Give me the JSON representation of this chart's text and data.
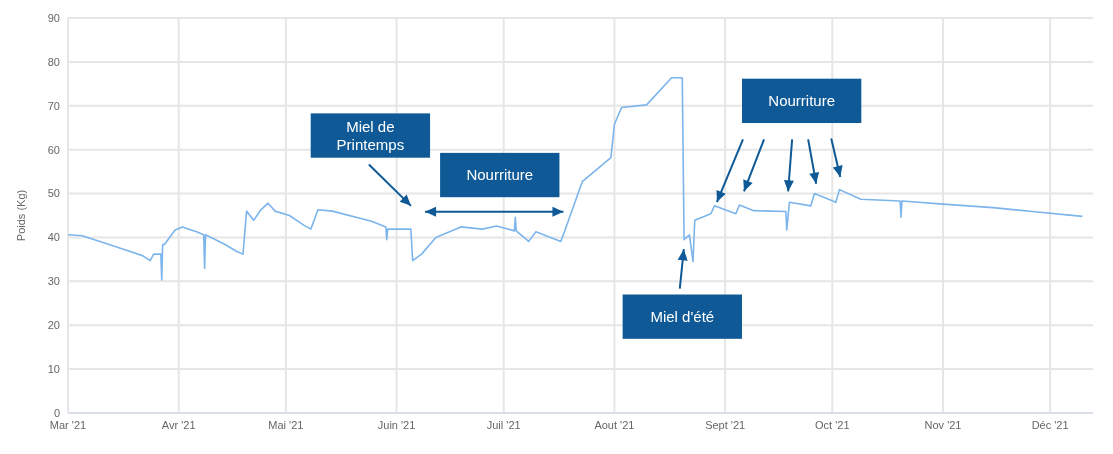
{
  "chart_data": {
    "type": "line",
    "ylabel": "Poids (Kg)",
    "x": [
      "2021-03-01",
      "2021-03-05",
      "2021-03-14",
      "2021-03-22",
      "2021-03-24",
      "2021-03-25",
      "2021-03-27",
      "2021-03-27T06:00",
      "2021-03-27T12:00",
      "2021-03-28",
      "2021-03-31",
      "2021-04-02",
      "2021-04-06",
      "2021-04-08",
      "2021-04-08T06:00",
      "2021-04-08T12:00",
      "2021-04-14",
      "2021-04-17",
      "2021-04-19",
      "2021-04-20",
      "2021-04-22",
      "2021-04-24",
      "2021-04-26",
      "2021-04-28",
      "2021-05-02",
      "2021-05-06",
      "2021-05-08",
      "2021-05-10",
      "2021-05-14",
      "2021-05-25",
      "2021-05-29",
      "2021-05-29T06:00",
      "2021-05-29T12:00",
      "2021-06-05",
      "2021-06-05T12:00",
      "2021-06-08",
      "2021-06-12",
      "2021-06-19",
      "2021-06-25",
      "2021-06-29",
      "2021-07-04",
      "2021-07-04T06:00",
      "2021-07-04T12:00",
      "2021-07-08",
      "2021-07-10",
      "2021-07-17",
      "2021-07-18",
      "2021-07-23",
      "2021-07-31",
      "2021-08-01",
      "2021-08-03",
      "2021-08-10",
      "2021-08-17",
      "2021-08-20",
      "2021-08-20T12:00",
      "2021-08-22",
      "2021-08-23",
      "2021-08-23T12:00",
      "2021-08-28",
      "2021-08-29",
      "2021-09-04",
      "2021-09-05",
      "2021-09-09",
      "2021-09-18",
      "2021-09-18T06:00",
      "2021-09-19",
      "2021-09-25",
      "2021-09-26",
      "2021-10-02",
      "2021-10-03",
      "2021-10-09",
      "2021-10-20",
      "2021-10-20T06:00",
      "2021-10-20T12:00",
      "2021-11-01",
      "2021-11-15",
      "2021-11-26",
      "2021-12-10"
    ],
    "series": [
      {
        "color": "#7cb5ec",
        "values": [
          40.6,
          40.4,
          38,
          35.8,
          34.7,
          36.2,
          36.2,
          30.3,
          38.4,
          38.4,
          41.7,
          42.4,
          41.3,
          40.6,
          33,
          40.6,
          38.4,
          36.9,
          36.2,
          46,
          43.9,
          46.3,
          47.8,
          46,
          45,
          42.8,
          41.9,
          46.3,
          46,
          43.7,
          42.4,
          39.5,
          41.9,
          41.9,
          34.7,
          36.2,
          40,
          42.4,
          41.9,
          42.6,
          41.5,
          44.6,
          41.5,
          39.1,
          41.3,
          39.1,
          41.3,
          52.7,
          58.2,
          65.8,
          69.6,
          70.2,
          76.4,
          76.4,
          39.5,
          40.6,
          34.5,
          43.9,
          45.4,
          47.2,
          45.4,
          47.4,
          46.1,
          45.9,
          41.7,
          48,
          47.2,
          50,
          48,
          50.9,
          48.7,
          48.3,
          44.6,
          48.3,
          47.6,
          46.8,
          45.9,
          44.8
        ]
      }
    ],
    "xlim": [
      "2021-03-01",
      "2021-12-13"
    ],
    "xticks": [
      {
        "value": "2021-03-01",
        "label": "Mar '21"
      },
      {
        "value": "2021-04-01",
        "label": "Avr '21"
      },
      {
        "value": "2021-05-01",
        "label": "Mai '21"
      },
      {
        "value": "2021-06-01",
        "label": "Juin '21"
      },
      {
        "value": "2021-07-01",
        "label": "Juil '21"
      },
      {
        "value": "2021-08-01",
        "label": "Aout '21"
      },
      {
        "value": "2021-09-01",
        "label": "Sept '21"
      },
      {
        "value": "2021-10-01",
        "label": "Oct '21"
      },
      {
        "value": "2021-11-01",
        "label": "Nov '21"
      },
      {
        "value": "2021-12-01",
        "label": "Déc '21"
      }
    ],
    "ylim": [
      0,
      90
    ],
    "yticks": [
      0,
      10,
      20,
      30,
      40,
      50,
      60,
      70,
      80,
      90
    ],
    "grid": true,
    "marker": "none",
    "line_style": "solid",
    "annotations": [
      "Miel de Printemps",
      "Nourriture",
      "Miel d'été",
      "Nourriture"
    ]
  }
}
